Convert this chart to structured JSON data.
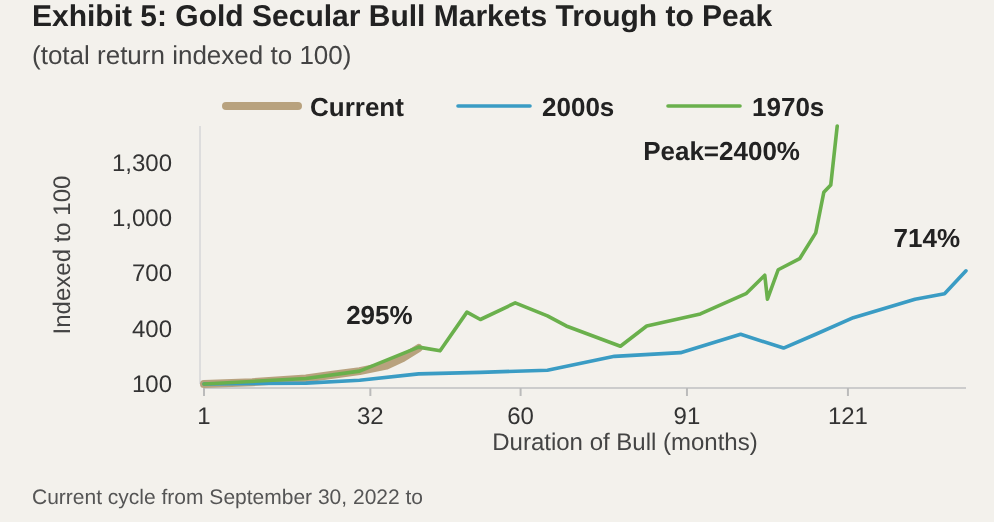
{
  "chart_data": {
    "type": "line",
    "title": "Exhibit 5: Gold Secular Bull Markets Trough to Peak",
    "subtitle": "(total return indexed to 100)",
    "xlabel": "Duration of Bull (months)",
    "ylabel": "Indexed to 100",
    "xlim": [
      1,
      143
    ],
    "xticks": [
      1,
      32,
      60,
      91,
      121
    ],
    "ylim": [
      100,
      1500
    ],
    "yticks": [
      100,
      400,
      700,
      {
        "value": 1000,
        "label": "1,000"
      },
      {
        "value": 1300,
        "label": "1,300"
      }
    ],
    "grid": false,
    "legend": "top",
    "series": [
      {
        "name": "Current",
        "color": "#b8a27e",
        "x": [
          1,
          10,
          20,
          25,
          30,
          35,
          38,
          41
        ],
        "values": [
          100,
          110,
          130,
          150,
          170,
          200,
          240,
          295
        ]
      },
      {
        "name": "2000s",
        "color": "#3a9cc4",
        "x": [
          1,
          20,
          30,
          41,
          52.5,
          65,
          77.5,
          89.8,
          101,
          109,
          115,
          122,
          133.5,
          139,
          143
        ],
        "values": [
          100,
          105,
          120,
          155,
          163,
          175,
          250,
          270,
          370,
          295,
          370,
          460,
          560,
          590,
          714
        ]
      },
      {
        "name": "1970s",
        "color": "#6ab04c",
        "x": [
          1,
          20,
          30,
          41,
          45,
          50,
          52.5,
          59,
          65,
          68.5,
          78.6,
          83.5,
          93.5,
          102,
          105.5,
          106,
          108,
          112,
          115,
          116.5,
          117.8,
          119
        ],
        "values": [
          100,
          130,
          170,
          300,
          280,
          490,
          450,
          540,
          470,
          415,
          305,
          415,
          480,
          590,
          690,
          560,
          720,
          780,
          920,
          1140,
          1180,
          1500
        ]
      }
    ],
    "annotations": [
      {
        "text": "295%",
        "x": 41,
        "y": 295
      },
      {
        "text": "714%",
        "x": 143,
        "y": 714
      },
      "Peak=2400%",
      "Current cycle from September 30, 2022 to"
    ]
  }
}
